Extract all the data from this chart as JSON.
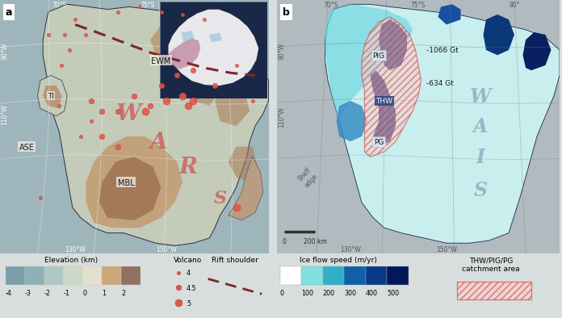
{
  "fig_width": 7.0,
  "fig_height": 4.01,
  "fig_dpi": 100,
  "ocean_color_a": "#a8b8bc",
  "land_base_color": "#c8cec0",
  "land_low_color": "#b8c8c0",
  "highland_colors": [
    "#c8a878",
    "#b89060",
    "#a07850",
    "#d0b088"
  ],
  "ocean_color_b": "#b0b8bc",
  "ice_base_color": "#c8eeee",
  "ice_fast_color": "#083070",
  "elevation_colors": [
    "#7a9faa",
    "#90b0b8",
    "#aec8c4",
    "#ccd8c8",
    "#e4e0d0",
    "#cca878",
    "#907060"
  ],
  "elevation_labels": [
    "-4",
    "-3",
    "-2",
    "-1",
    "0",
    "1",
    "2"
  ],
  "flow_colors": [
    "#ffffff",
    "#80e0e0",
    "#30b0c8",
    "#1060a8",
    "#083888",
    "#041858"
  ],
  "flow_labels": [
    "0",
    "100",
    "200",
    "300",
    "400",
    "500"
  ],
  "volcano_color": "#e05848",
  "rift_color": "#7a2828",
  "catchment_color": "#cc3333",
  "wais_color": "#7098b0",
  "war_color": "#cc5555",
  "thw_box": "#304888",
  "panel_a_inset_bg": "#1a2848",
  "ant_white": "#f0f0f0",
  "ant_highlight": "#c090a0",
  "ant_blue": "#7ab0d0"
}
